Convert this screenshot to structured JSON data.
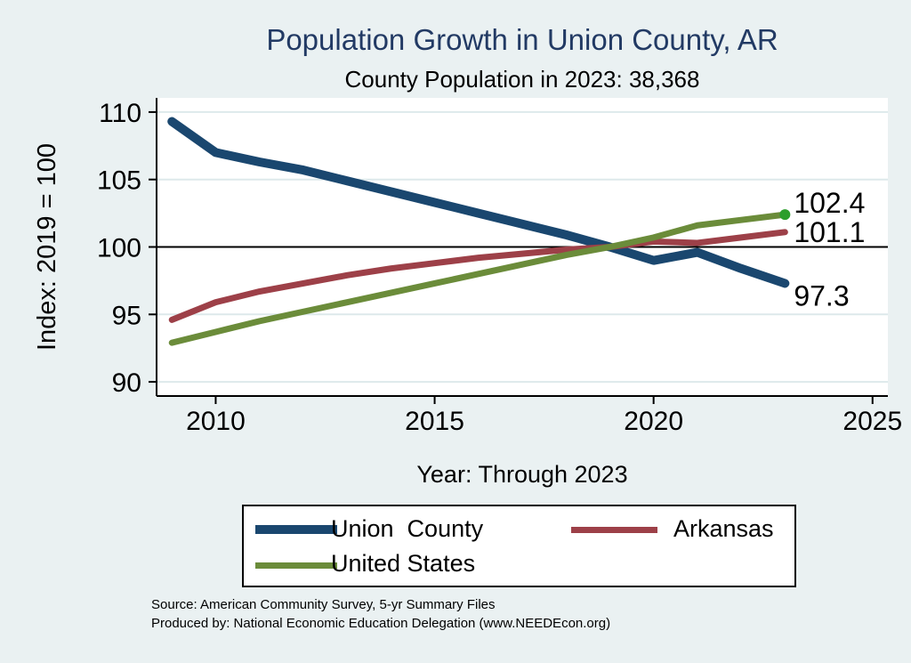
{
  "colors": {
    "background": "#eaf1f2",
    "plot_background": "#ffffff",
    "gridline": "#dde9eb",
    "axis": "#000000",
    "title_text": "#223a64",
    "navy": "#1a476f",
    "maroon": "#9d4048",
    "olive": "#6b8c3a",
    "end_marker_green": "#2b9e2b"
  },
  "source_line1": "Source: American Community Survey, 5-yr Summary Files",
  "source_line2": "Produced by: National Economic Education Delegation (www.NEEDEcon.org)",
  "chart_data": {
    "type": "line",
    "title": "Population Growth in Union County, AR",
    "subtitle": "County Population in 2023: 38,368",
    "xlabel": "Year: Through 2023",
    "ylabel": "Index: 2019 = 100",
    "x": [
      2009,
      2010,
      2011,
      2012,
      2013,
      2014,
      2015,
      2016,
      2017,
      2018,
      2019,
      2020,
      2021,
      2022,
      2023
    ],
    "series": [
      {
        "name": "Union  County",
        "color": "#1a476f",
        "values": [
          109.3,
          107.0,
          106.3,
          105.7,
          104.9,
          104.1,
          103.3,
          102.5,
          101.7,
          100.9,
          100.0,
          99.0,
          99.6,
          98.4,
          97.3
        ],
        "end_label": "97.3"
      },
      {
        "name": "Arkansas",
        "color": "#9d4048",
        "values": [
          94.6,
          95.9,
          96.7,
          97.3,
          97.9,
          98.4,
          98.8,
          99.2,
          99.5,
          99.8,
          100.0,
          100.4,
          100.3,
          100.7,
          101.1
        ],
        "end_label": "101.1"
      },
      {
        "name": "United States",
        "color": "#6b8c3a",
        "values": [
          92.9,
          93.7,
          94.5,
          95.2,
          95.9,
          96.6,
          97.3,
          98.0,
          98.7,
          99.4,
          100.0,
          100.7,
          101.6,
          102.0,
          102.4
        ],
        "end_label": "102.4",
        "end_marker": true
      }
    ],
    "x_ticks": [
      2010,
      2015,
      2020,
      2025
    ],
    "x_tick_labels": [
      "2010",
      "2015",
      "2020",
      "2025"
    ],
    "y_ticks": [
      90,
      95,
      100,
      105,
      110
    ],
    "y_tick_labels": [
      "90",
      "95",
      "100",
      "105",
      "110"
    ],
    "reference_line_y": 100,
    "xlim": [
      2008.65,
      2025.35
    ],
    "ylim": [
      88.95,
      111.05
    ],
    "grid": "horizontal",
    "legend_position": "bottom"
  }
}
